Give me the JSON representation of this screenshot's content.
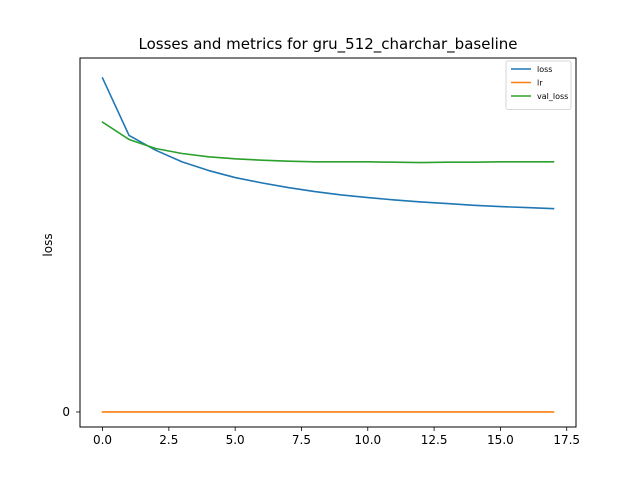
{
  "chart_data": {
    "type": "line",
    "title": "Losses and metrics for gru_512_charchar_baseline",
    "xlabel": "",
    "ylabel": "loss",
    "xlim": [
      -0.85,
      17.85
    ],
    "ylim": [
      -0.45,
      10.6
    ],
    "x_ticks": [
      0,
      2.5,
      5,
      7.5,
      10,
      12.5,
      15,
      17.5
    ],
    "x_tick_labels": [
      "0.0",
      "2.5",
      "5.0",
      "7.5",
      "10.0",
      "12.5",
      "15.0",
      "17.5"
    ],
    "y_ticks": [
      0
    ],
    "y_tick_labels": [
      "0"
    ],
    "grid": false,
    "legend": "top-right",
    "x": [
      0,
      1,
      2,
      3,
      4,
      5,
      6,
      7,
      8,
      9,
      10,
      11,
      12,
      13,
      14,
      15,
      16,
      17
    ],
    "series": [
      {
        "name": "loss",
        "color": "#1f77b4",
        "values": [
          10.0,
          8.28,
          7.84,
          7.49,
          7.23,
          7.02,
          6.86,
          6.72,
          6.6,
          6.5,
          6.42,
          6.35,
          6.29,
          6.24,
          6.19,
          6.15,
          6.12,
          6.09
        ]
      },
      {
        "name": "lr",
        "color": "#ff7f0e",
        "values": [
          0.001,
          0.001,
          0.001,
          0.001,
          0.001,
          0.001,
          0.001,
          0.001,
          0.001,
          0.001,
          0.001,
          0.001,
          0.001,
          0.001,
          0.001,
          0.001,
          0.001,
          0.001
        ]
      },
      {
        "name": "val_loss",
        "color": "#2ca02c",
        "values": [
          8.68,
          8.16,
          7.89,
          7.74,
          7.64,
          7.58,
          7.54,
          7.51,
          7.49,
          7.49,
          7.49,
          7.48,
          7.47,
          7.48,
          7.48,
          7.49,
          7.49,
          7.49
        ]
      }
    ]
  }
}
